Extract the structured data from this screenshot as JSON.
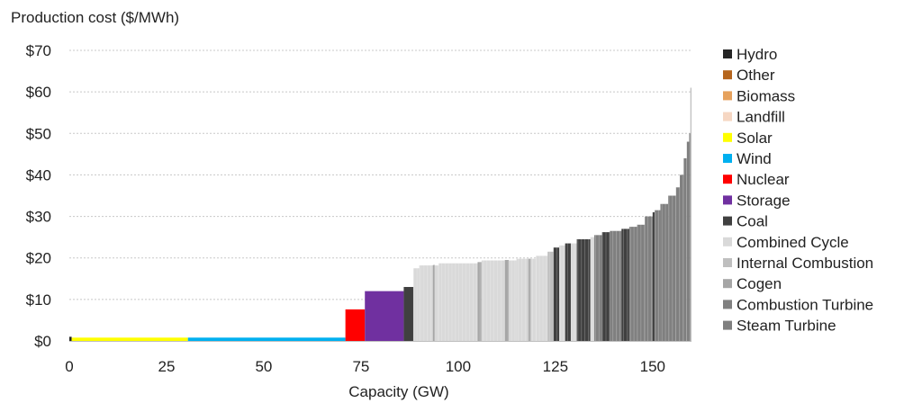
{
  "chart_data": {
    "type": "bar",
    "title": "Production cost ($/MWh)",
    "xlabel": "Capacity (GW)",
    "ylabel": "",
    "xlim": [
      0,
      160
    ],
    "ylim": [
      0,
      70
    ],
    "x_ticks": [
      "0",
      "25",
      "50",
      "75",
      "100",
      "125",
      "150"
    ],
    "y_ticks": [
      "$0",
      "$10",
      "$20",
      "$30",
      "$40",
      "$50",
      "$60",
      "$70"
    ],
    "grid": true,
    "legend_position": "right",
    "series": [
      {
        "name": "Hydro",
        "color": "#262626"
      },
      {
        "name": "Other",
        "color": "#b5651d"
      },
      {
        "name": "Biomass",
        "color": "#e6a15c"
      },
      {
        "name": "Landfill",
        "color": "#f6d7c3"
      },
      {
        "name": "Solar",
        "color": "#ffff00"
      },
      {
        "name": "Wind",
        "color": "#00b0f0"
      },
      {
        "name": "Nuclear",
        "color": "#ff0000"
      },
      {
        "name": "Storage",
        "color": "#7030a0"
      },
      {
        "name": "Coal",
        "color": "#404040"
      },
      {
        "name": "Combined Cycle",
        "color": "#d9d9d9"
      },
      {
        "name": "Internal Combustion",
        "color": "#bfbfbf"
      },
      {
        "name": "Cogen",
        "color": "#a6a6a6"
      },
      {
        "name": "Combustion Turbine",
        "color": "#808080"
      },
      {
        "name": "Steam Turbine",
        "color": "#7f7f7f"
      }
    ],
    "blocks": [
      {
        "type": "Hydro",
        "x0": 0,
        "x1": 0.6,
        "cost": 1.0
      },
      {
        "type": "Solar",
        "x0": 0.6,
        "x1": 30.5,
        "cost": 0.8
      },
      {
        "type": "Wind",
        "x0": 30.5,
        "x1": 71,
        "cost": 0.8
      },
      {
        "type": "Nuclear",
        "x0": 71,
        "x1": 76,
        "cost": 7.6
      },
      {
        "type": "Storage",
        "x0": 76,
        "x1": 86,
        "cost": 12
      },
      {
        "type": "Coal",
        "x0": 86,
        "x1": 88.5,
        "cost": 13
      },
      {
        "type": "Combined Cycle",
        "x0": 88.5,
        "x1": 90,
        "cost": 17.5
      },
      {
        "type": "Combined Cycle",
        "x0": 90,
        "x1": 95,
        "cost": 18.2
      },
      {
        "type": "Cogen",
        "x0": 93.5,
        "x1": 94,
        "cost": 18.3
      },
      {
        "type": "Combined Cycle",
        "x0": 95,
        "x1": 105,
        "cost": 18.7
      },
      {
        "type": "Cogen",
        "x0": 105,
        "x1": 106,
        "cost": 19
      },
      {
        "type": "Combined Cycle",
        "x0": 106,
        "x1": 115,
        "cost": 19.4
      },
      {
        "type": "Cogen",
        "x0": 112,
        "x1": 113,
        "cost": 19.5
      },
      {
        "type": "Combined Cycle",
        "x0": 115,
        "x1": 120,
        "cost": 19.8
      },
      {
        "type": "Cogen",
        "x0": 118,
        "x1": 118.6,
        "cost": 19.8
      },
      {
        "type": "Combined Cycle",
        "x0": 120,
        "x1": 123,
        "cost": 20.5
      },
      {
        "type": "Internal Combustion",
        "x0": 123,
        "x1": 124.5,
        "cost": 21.5
      },
      {
        "type": "Coal",
        "x0": 124.5,
        "x1": 126,
        "cost": 22.5
      },
      {
        "type": "Combined Cycle",
        "x0": 126,
        "x1": 127.5,
        "cost": 23
      },
      {
        "type": "Coal",
        "x0": 127.5,
        "x1": 129,
        "cost": 23.5
      },
      {
        "type": "Combined Cycle",
        "x0": 129,
        "x1": 130.5,
        "cost": 23.5
      },
      {
        "type": "Coal",
        "x0": 130.5,
        "x1": 134,
        "cost": 24.5
      },
      {
        "type": "Combined Cycle",
        "x0": 134,
        "x1": 135,
        "cost": 25
      },
      {
        "type": "Combustion Turbine",
        "x0": 135,
        "x1": 137,
        "cost": 25.5
      },
      {
        "type": "Coal",
        "x0": 137,
        "x1": 139,
        "cost": 26.2
      },
      {
        "type": "Combustion Turbine",
        "x0": 139,
        "x1": 142,
        "cost": 26.5
      },
      {
        "type": "Coal",
        "x0": 142,
        "x1": 144,
        "cost": 27
      },
      {
        "type": "Combustion Turbine",
        "x0": 144,
        "x1": 146,
        "cost": 27.5
      },
      {
        "type": "Steam Turbine",
        "x0": 146,
        "x1": 148,
        "cost": 28
      },
      {
        "type": "Combustion Turbine",
        "x0": 148,
        "x1": 150,
        "cost": 30
      },
      {
        "type": "Coal",
        "x0": 150,
        "x1": 150.5,
        "cost": 31
      },
      {
        "type": "Steam Turbine",
        "x0": 150.5,
        "x1": 152,
        "cost": 31.5
      },
      {
        "type": "Steam Turbine",
        "x0": 152,
        "x1": 154,
        "cost": 33
      },
      {
        "type": "Steam Turbine",
        "x0": 154,
        "x1": 156,
        "cost": 35
      },
      {
        "type": "Steam Turbine",
        "x0": 156,
        "x1": 157,
        "cost": 37
      },
      {
        "type": "Steam Turbine",
        "x0": 157,
        "x1": 158,
        "cost": 40
      },
      {
        "type": "Steam Turbine",
        "x0": 158,
        "x1": 158.8,
        "cost": 44
      },
      {
        "type": "Steam Turbine",
        "x0": 158.8,
        "x1": 159.4,
        "cost": 48
      },
      {
        "type": "Steam Turbine",
        "x0": 159.4,
        "x1": 159.7,
        "cost": 50
      },
      {
        "type": "Internal Combustion",
        "x0": 159.7,
        "x1": 160,
        "cost": 61
      }
    ]
  }
}
